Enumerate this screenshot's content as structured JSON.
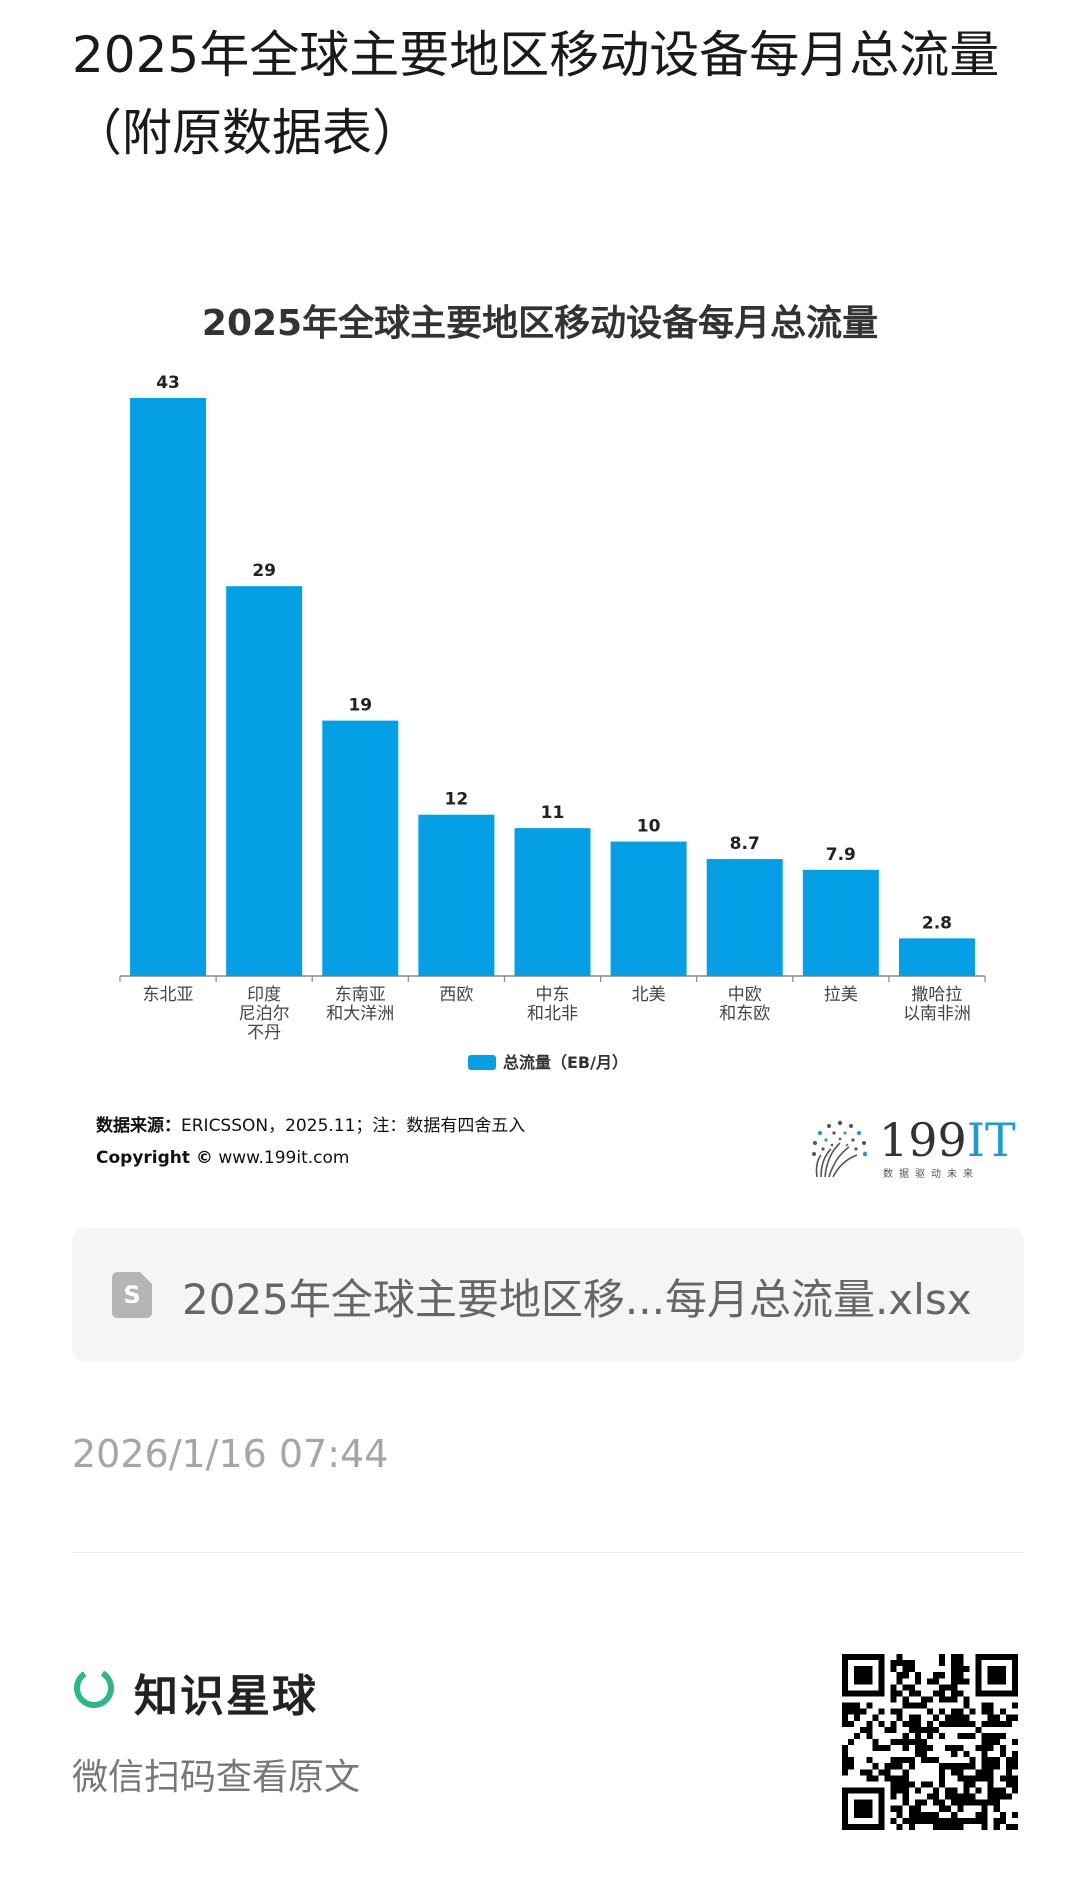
{
  "page": {
    "title": "2025年全球主要地区移动设备每月总流量（附原数据表）"
  },
  "chart_data": {
    "type": "bar",
    "title": "2025年全球主要地区移动设备每月总流量",
    "categories": [
      [
        "东北亚"
      ],
      [
        "印度",
        "尼泊尔",
        "不丹"
      ],
      [
        "东南亚",
        "和大洋洲"
      ],
      [
        "西欧"
      ],
      [
        "中东",
        "和北非"
      ],
      [
        "北美"
      ],
      [
        "中欧",
        "和东欧"
      ],
      [
        "拉美"
      ],
      [
        "撒哈拉",
        "以南非洲"
      ]
    ],
    "series": [
      {
        "name": "总流量（EB/月）",
        "values": [
          43,
          29,
          19,
          12,
          11,
          10,
          8.7,
          7.9,
          2.8
        ],
        "labels": [
          "43",
          "29",
          "19",
          "12",
          "11",
          "10",
          "8.7",
          "7.9",
          "2.8"
        ],
        "color": "#049fe4"
      }
    ],
    "ylim": [
      0,
      43
    ],
    "grid": false,
    "legend_position": "bottom",
    "source_label": "数据来源：",
    "source_text": "ERICSSON，2025.11；注：数据有四舍五入",
    "copyright_label": "Copyright ©",
    "copyright_text": "www.199it.com"
  },
  "logo": {
    "number": "199",
    "suffix": "IT",
    "tagline": "数据驱动未来"
  },
  "attachment": {
    "icon": "spreadsheet-file-icon",
    "icon_letter": "S",
    "file_name": "2025年全球主要地区移...每月总流量.xlsx"
  },
  "post": {
    "timestamp": "2026/1/16 07:44"
  },
  "footer": {
    "brand_name": "知识星球",
    "brand_color": "#2bb786",
    "scan_hint": "微信扫码查看原文",
    "qr_icon": "qr-code-icon"
  }
}
